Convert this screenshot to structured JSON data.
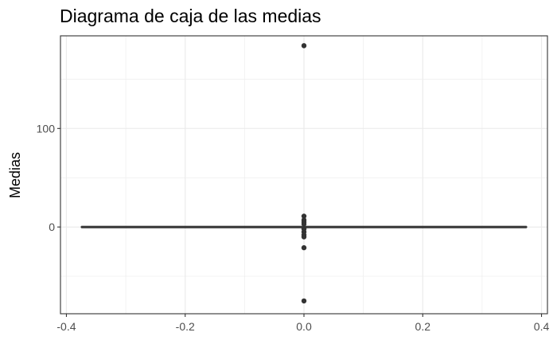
{
  "chart_data": {
    "type": "boxplot",
    "title": "Diagrama de caja de las medias",
    "xlabel": "",
    "ylabel": "Medias",
    "xlim": [
      -0.41,
      0.41
    ],
    "ylim": [
      -88,
      194
    ],
    "x_ticks": [
      -0.4,
      -0.2,
      0.0,
      0.2,
      0.4
    ],
    "x_tick_labels": [
      "-0.4",
      "-0.2",
      "0.0",
      "0.2",
      "0.4"
    ],
    "y_ticks": [
      0,
      100
    ],
    "y_tick_labels": [
      "0",
      "100"
    ],
    "grid": true,
    "box": {
      "x": 0,
      "x_range": [
        -0.375,
        0.375
      ],
      "q1": -0.3,
      "median": 0,
      "q3": 0.3,
      "whisker_low": -0.8,
      "whisker_high": 0.8
    },
    "outliers": [
      184,
      11,
      7,
      5,
      3,
      -2,
      -5,
      -8,
      -10,
      -21,
      -75
    ]
  }
}
